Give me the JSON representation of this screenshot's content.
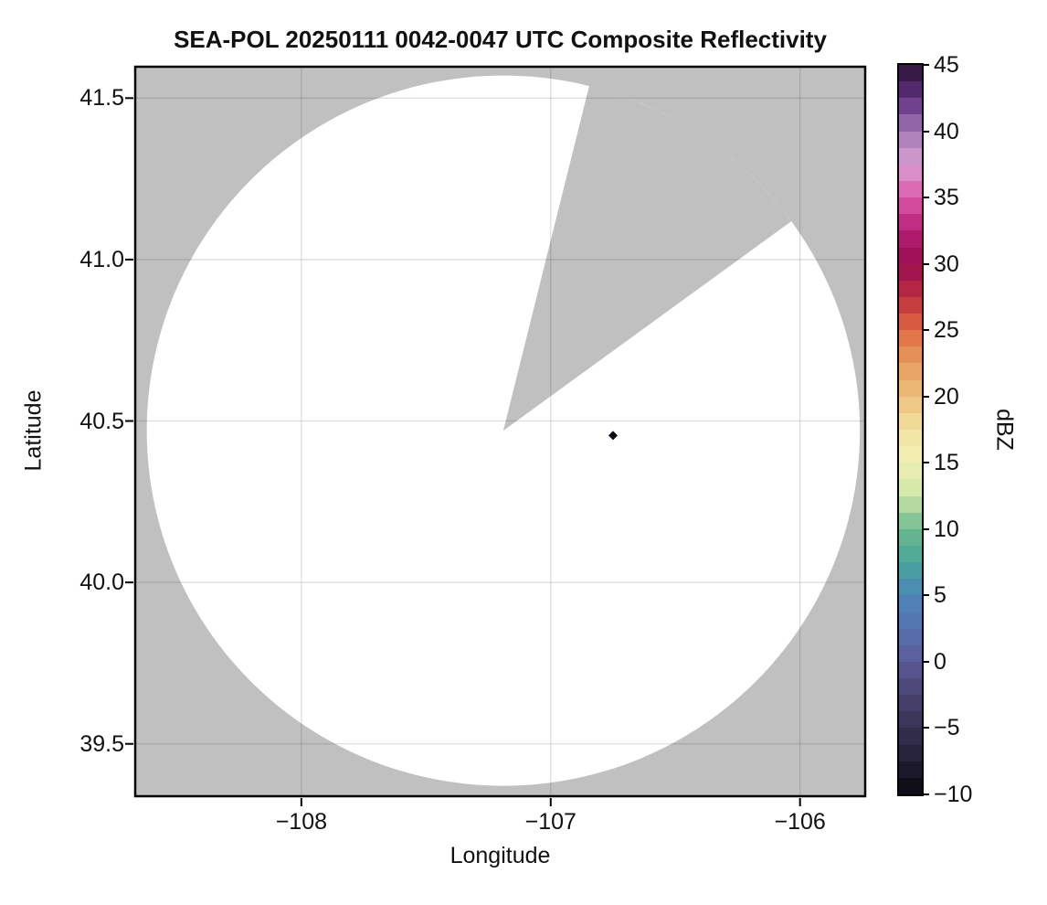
{
  "title": "SEA-POL 20250111 0042-0047 UTC Composite Reflectivity",
  "axes": {
    "x": {
      "label": "Longitude",
      "range": [
        -108.67,
        -105.735
      ],
      "ticks": [
        {
          "value": -108,
          "label": "−108"
        },
        {
          "value": -107,
          "label": "−107"
        },
        {
          "value": -106,
          "label": "−106"
        }
      ]
    },
    "y": {
      "label": "Latitude",
      "range": [
        39.335,
        41.6
      ],
      "ticks": [
        {
          "value": 41.5,
          "label": "41.5"
        },
        {
          "value": 41.0,
          "label": "41.0"
        },
        {
          "value": 40.5,
          "label": "40.5"
        },
        {
          "value": 40.0,
          "label": "40.0"
        },
        {
          "value": 39.5,
          "label": "39.5"
        }
      ]
    },
    "grid": true,
    "grid_color": "rgba(0,0,0,0.13)"
  },
  "colorbar": {
    "label": "dBZ",
    "min": -10,
    "max": 45,
    "band_step": 1.25,
    "ticks": [
      {
        "value": 45,
        "label": "45"
      },
      {
        "value": 40,
        "label": "40"
      },
      {
        "value": 35,
        "label": "35"
      },
      {
        "value": 30,
        "label": "30"
      },
      {
        "value": 25,
        "label": "25"
      },
      {
        "value": 20,
        "label": "20"
      },
      {
        "value": 15,
        "label": "15"
      },
      {
        "value": 10,
        "label": "10"
      },
      {
        "value": 5,
        "label": "5"
      },
      {
        "value": 0,
        "label": "0"
      },
      {
        "value": -5,
        "label": "−5"
      },
      {
        "value": -10,
        "label": "−10"
      }
    ],
    "anchors": [
      [
        45.0,
        "#2b1232"
      ],
      [
        42.5,
        "#5f3080"
      ],
      [
        40.0,
        "#a178b5"
      ],
      [
        37.5,
        "#d9a0d1"
      ],
      [
        35.0,
        "#dc59a8"
      ],
      [
        32.5,
        "#b51f77"
      ],
      [
        30.0,
        "#980e50"
      ],
      [
        27.5,
        "#bd2e3e"
      ],
      [
        25.0,
        "#e06a42"
      ],
      [
        22.5,
        "#e79c60"
      ],
      [
        20.0,
        "#ebc07b"
      ],
      [
        17.5,
        "#f3e2a2"
      ],
      [
        15.0,
        "#f0f0b4"
      ],
      [
        12.5,
        "#cde5a7"
      ],
      [
        10.0,
        "#6cba8f"
      ],
      [
        7.5,
        "#49a69a"
      ],
      [
        5.0,
        "#4d86b8"
      ],
      [
        2.5,
        "#5671af"
      ],
      [
        0.0,
        "#5d5b98"
      ],
      [
        -2.5,
        "#494371"
      ],
      [
        -5.0,
        "#373152"
      ],
      [
        -7.5,
        "#221e36"
      ],
      [
        -10.0,
        "#08070e"
      ]
    ]
  },
  "chart_data": {
    "type": "radar_composite_reflectivity_ppi",
    "units": "dBZ",
    "radar": {
      "lon": -107.19,
      "lat": 40.47,
      "range_lon_deg": 1.43,
      "range_lat_deg": 1.1,
      "coverage_color": "#ffffff",
      "no_data_color": "#c0c0c0",
      "blocked_sector_azimuth_deg": [
        14,
        54
      ]
    },
    "echoes": [
      {
        "lon": -106.75,
        "lat": 40.455,
        "dbz": -8,
        "color": "#0a0a10"
      }
    ]
  }
}
